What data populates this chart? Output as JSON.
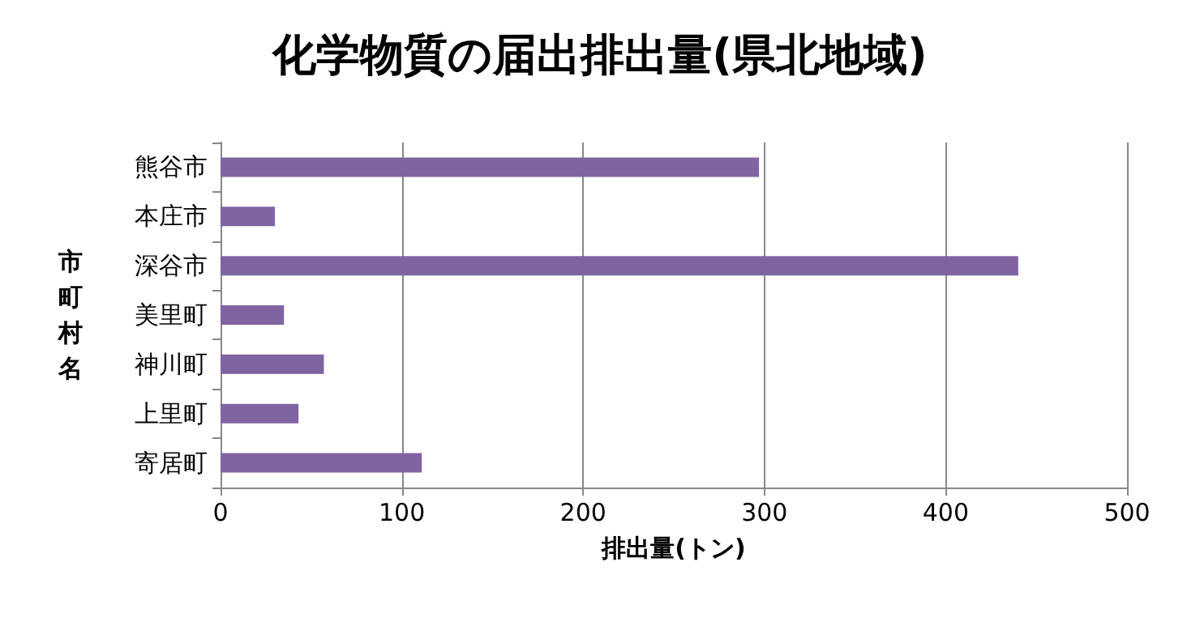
{
  "chart_data": {
    "type": "bar",
    "orientation": "horizontal",
    "title": "化学物質の届出排出量(県北地域)",
    "xlabel": "排出量(トン)",
    "ylabel": "市町村名",
    "categories": [
      "熊谷市",
      "本庄市",
      "深谷市",
      "美里町",
      "神川町",
      "上里町",
      "寄居町"
    ],
    "values": [
      297,
      30,
      440,
      35,
      57,
      43,
      111
    ],
    "color": "#8064a2",
    "xlim": [
      0,
      500
    ],
    "xticks": [
      0,
      100,
      200,
      300,
      400,
      500
    ],
    "grid": "x"
  }
}
